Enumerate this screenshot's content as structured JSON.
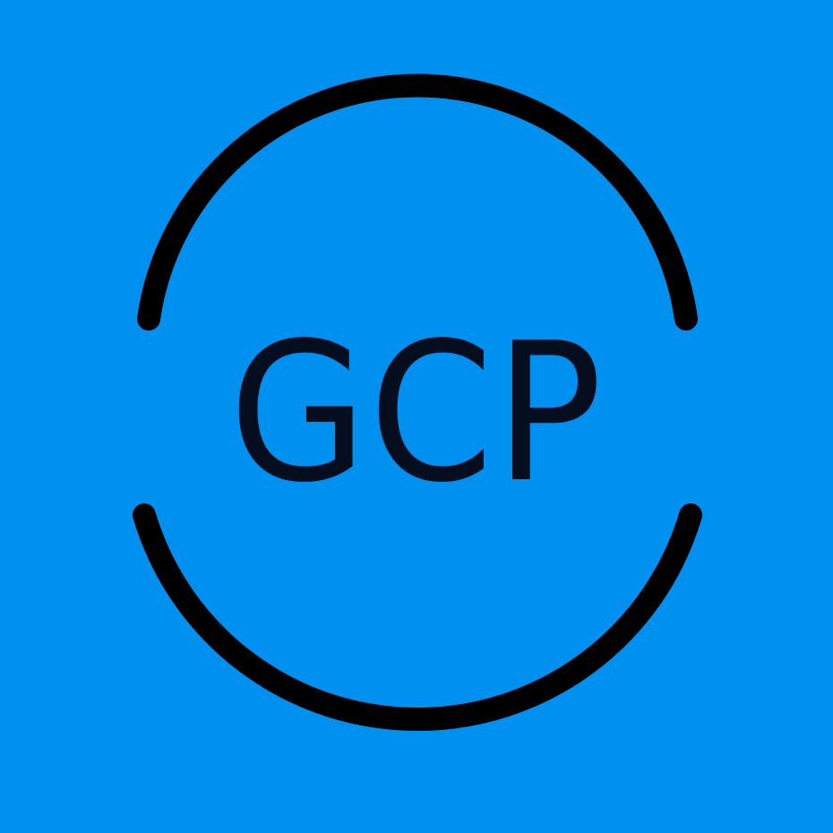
{
  "logo": {
    "text": "GCP",
    "background_color": "#0091F0",
    "ring_color": "#000000",
    "text_color": "#050E1E"
  }
}
